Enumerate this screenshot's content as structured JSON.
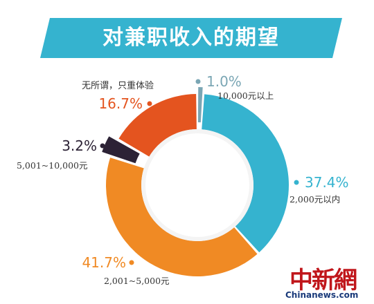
{
  "colors": {
    "banner": "#35b3cf",
    "background": "#ffffff",
    "ring_inner": "#f4f4f4"
  },
  "chart_data": {
    "type": "pie",
    "variant": "donut",
    "title": "对兼职收入的期望",
    "note": "无所谓，只重体验",
    "slices": [
      {
        "value": 1.0,
        "label": "1.0%",
        "category": "10,000元以上",
        "color": "#7aa6b4"
      },
      {
        "value": 37.4,
        "label": "37.4%",
        "category": "2,000元以内",
        "color": "#35b3cf"
      },
      {
        "value": 41.7,
        "label": "41.7%",
        "category": "2,001~5,000元",
        "color": "#f08a24"
      },
      {
        "value": 3.2,
        "label": "3.2%",
        "category": "5,001~10,000元",
        "color": "#2c2235"
      },
      {
        "value": 16.7,
        "label": "16.7%",
        "category": "无所谓，只重体验",
        "color": "#e4541f"
      }
    ]
  },
  "watermark": {
    "cn": "中新網",
    "en": "Chinanews.com"
  }
}
